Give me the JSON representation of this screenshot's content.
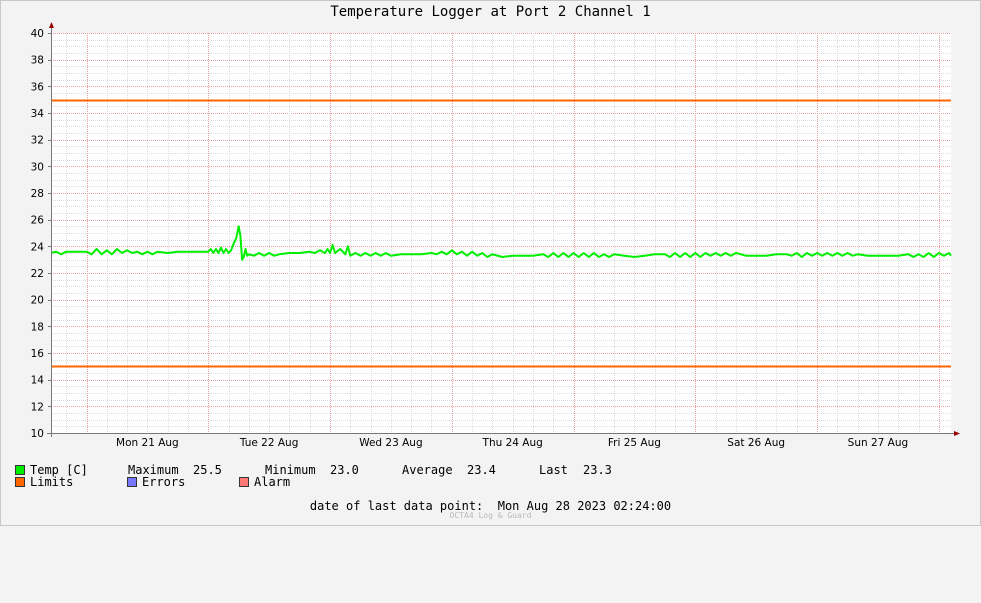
{
  "title": "Temperature Logger at Port 2 Channel 1",
  "chart_data": {
    "type": "line",
    "title": "Temperature Logger at Port 2 Channel 1",
    "xlabel": "",
    "ylabel": "",
    "ylim": [
      10,
      40
    ],
    "y_ticks": [
      10,
      12,
      14,
      16,
      18,
      20,
      22,
      24,
      26,
      28,
      30,
      32,
      34,
      36,
      38,
      40
    ],
    "x_range": [
      "2023-08-20 17:00",
      "2023-08-28 02:24"
    ],
    "x_ticks": [
      {
        "label": "Mon 21 Aug",
        "date": "2023-08-21"
      },
      {
        "label": "Tue 22 Aug",
        "date": "2023-08-22"
      },
      {
        "label": "Wed 23 Aug",
        "date": "2023-08-23"
      },
      {
        "label": "Thu 24 Aug",
        "date": "2023-08-24"
      },
      {
        "label": "Fri 25 Aug",
        "date": "2023-08-25"
      },
      {
        "label": "Sat 26 Aug",
        "date": "2023-08-26"
      },
      {
        "label": "Sun 27 Aug",
        "date": "2023-08-27"
      }
    ],
    "grid": true,
    "series": [
      {
        "name": "Temp [C]",
        "color": "#00ee00",
        "points": [
          [
            "2023-08-20 17:00",
            23.5
          ],
          [
            "2023-08-20 18:00",
            23.6
          ],
          [
            "2023-08-20 19:00",
            23.4
          ],
          [
            "2023-08-20 20:00",
            23.6
          ],
          [
            "2023-08-20 22:00",
            23.6
          ],
          [
            "2023-08-21 00:00",
            23.6
          ],
          [
            "2023-08-21 01:00",
            23.4
          ],
          [
            "2023-08-21 02:00",
            23.8
          ],
          [
            "2023-08-21 03:00",
            23.4
          ],
          [
            "2023-08-21 04:00",
            23.7
          ],
          [
            "2023-08-21 05:00",
            23.4
          ],
          [
            "2023-08-21 06:00",
            23.8
          ],
          [
            "2023-08-21 07:00",
            23.5
          ],
          [
            "2023-08-21 08:00",
            23.7
          ],
          [
            "2023-08-21 09:00",
            23.5
          ],
          [
            "2023-08-21 10:00",
            23.6
          ],
          [
            "2023-08-21 11:00",
            23.4
          ],
          [
            "2023-08-21 12:00",
            23.6
          ],
          [
            "2023-08-21 13:00",
            23.4
          ],
          [
            "2023-08-21 14:00",
            23.6
          ],
          [
            "2023-08-21 16:00",
            23.5
          ],
          [
            "2023-08-21 18:00",
            23.6
          ],
          [
            "2023-08-21 20:00",
            23.6
          ],
          [
            "2023-08-21 22:00",
            23.6
          ],
          [
            "2023-08-22 00:00",
            23.6
          ],
          [
            "2023-08-22 00:30",
            23.8
          ],
          [
            "2023-08-22 01:00",
            23.5
          ],
          [
            "2023-08-22 01:30",
            23.8
          ],
          [
            "2023-08-22 02:00",
            23.5
          ],
          [
            "2023-08-22 02:30",
            23.9
          ],
          [
            "2023-08-22 03:00",
            23.5
          ],
          [
            "2023-08-22 03:30",
            23.8
          ],
          [
            "2023-08-22 04:00",
            23.5
          ],
          [
            "2023-08-22 04:30",
            23.7
          ],
          [
            "2023-08-22 05:00",
            24.2
          ],
          [
            "2023-08-22 05:30",
            24.6
          ],
          [
            "2023-08-22 06:00",
            25.5
          ],
          [
            "2023-08-22 06:20",
            24.8
          ],
          [
            "2023-08-22 06:40",
            23.0
          ],
          [
            "2023-08-22 07:00",
            23.2
          ],
          [
            "2023-08-22 07:20",
            23.8
          ],
          [
            "2023-08-22 07:40",
            23.3
          ],
          [
            "2023-08-22 08:00",
            23.4
          ],
          [
            "2023-08-22 09:00",
            23.3
          ],
          [
            "2023-08-22 10:00",
            23.5
          ],
          [
            "2023-08-22 11:00",
            23.3
          ],
          [
            "2023-08-22 12:00",
            23.5
          ],
          [
            "2023-08-22 13:00",
            23.3
          ],
          [
            "2023-08-22 14:00",
            23.4
          ],
          [
            "2023-08-22 16:00",
            23.5
          ],
          [
            "2023-08-22 18:00",
            23.5
          ],
          [
            "2023-08-22 20:00",
            23.6
          ],
          [
            "2023-08-22 21:00",
            23.5
          ],
          [
            "2023-08-22 22:00",
            23.7
          ],
          [
            "2023-08-22 23:00",
            23.5
          ],
          [
            "2023-08-22 23:30",
            23.8
          ],
          [
            "2023-08-23 00:00",
            23.5
          ],
          [
            "2023-08-23 00:30",
            24.1
          ],
          [
            "2023-08-23 01:00",
            23.5
          ],
          [
            "2023-08-23 02:00",
            23.8
          ],
          [
            "2023-08-23 03:00",
            23.4
          ],
          [
            "2023-08-23 03:30",
            24.0
          ],
          [
            "2023-08-23 04:00",
            23.3
          ],
          [
            "2023-08-23 05:00",
            23.5
          ],
          [
            "2023-08-23 06:00",
            23.3
          ],
          [
            "2023-08-23 07:00",
            23.5
          ],
          [
            "2023-08-23 08:00",
            23.3
          ],
          [
            "2023-08-23 09:00",
            23.5
          ],
          [
            "2023-08-23 10:00",
            23.3
          ],
          [
            "2023-08-23 11:00",
            23.5
          ],
          [
            "2023-08-23 12:00",
            23.3
          ],
          [
            "2023-08-23 14:00",
            23.4
          ],
          [
            "2023-08-23 16:00",
            23.4
          ],
          [
            "2023-08-23 18:00",
            23.4
          ],
          [
            "2023-08-23 20:00",
            23.5
          ],
          [
            "2023-08-23 21:00",
            23.4
          ],
          [
            "2023-08-23 22:00",
            23.6
          ],
          [
            "2023-08-23 23:00",
            23.4
          ],
          [
            "2023-08-24 00:00",
            23.7
          ],
          [
            "2023-08-24 01:00",
            23.4
          ],
          [
            "2023-08-24 02:00",
            23.6
          ],
          [
            "2023-08-24 03:00",
            23.3
          ],
          [
            "2023-08-24 04:00",
            23.6
          ],
          [
            "2023-08-24 05:00",
            23.3
          ],
          [
            "2023-08-24 06:00",
            23.5
          ],
          [
            "2023-08-24 07:00",
            23.2
          ],
          [
            "2023-08-24 08:00",
            23.4
          ],
          [
            "2023-08-24 10:00",
            23.2
          ],
          [
            "2023-08-24 12:00",
            23.3
          ],
          [
            "2023-08-24 14:00",
            23.3
          ],
          [
            "2023-08-24 16:00",
            23.3
          ],
          [
            "2023-08-24 18:00",
            23.4
          ],
          [
            "2023-08-24 19:00",
            23.2
          ],
          [
            "2023-08-24 20:00",
            23.5
          ],
          [
            "2023-08-24 21:00",
            23.2
          ],
          [
            "2023-08-24 22:00",
            23.5
          ],
          [
            "2023-08-24 23:00",
            23.2
          ],
          [
            "2023-08-25 00:00",
            23.5
          ],
          [
            "2023-08-25 01:00",
            23.2
          ],
          [
            "2023-08-25 02:00",
            23.5
          ],
          [
            "2023-08-25 03:00",
            23.2
          ],
          [
            "2023-08-25 04:00",
            23.5
          ],
          [
            "2023-08-25 05:00",
            23.2
          ],
          [
            "2023-08-25 06:00",
            23.4
          ],
          [
            "2023-08-25 07:00",
            23.2
          ],
          [
            "2023-08-25 08:00",
            23.4
          ],
          [
            "2023-08-25 10:00",
            23.3
          ],
          [
            "2023-08-25 12:00",
            23.2
          ],
          [
            "2023-08-25 14:00",
            23.3
          ],
          [
            "2023-08-25 16:00",
            23.4
          ],
          [
            "2023-08-25 18:00",
            23.4
          ],
          [
            "2023-08-25 19:00",
            23.2
          ],
          [
            "2023-08-25 20:00",
            23.5
          ],
          [
            "2023-08-25 21:00",
            23.2
          ],
          [
            "2023-08-25 22:00",
            23.5
          ],
          [
            "2023-08-25 23:00",
            23.2
          ],
          [
            "2023-08-26 00:00",
            23.5
          ],
          [
            "2023-08-26 01:00",
            23.2
          ],
          [
            "2023-08-26 02:00",
            23.5
          ],
          [
            "2023-08-26 03:00",
            23.3
          ],
          [
            "2023-08-26 04:00",
            23.5
          ],
          [
            "2023-08-26 05:00",
            23.3
          ],
          [
            "2023-08-26 06:00",
            23.5
          ],
          [
            "2023-08-26 07:00",
            23.3
          ],
          [
            "2023-08-26 08:00",
            23.5
          ],
          [
            "2023-08-26 10:00",
            23.3
          ],
          [
            "2023-08-26 12:00",
            23.3
          ],
          [
            "2023-08-26 14:00",
            23.3
          ],
          [
            "2023-08-26 16:00",
            23.4
          ],
          [
            "2023-08-26 18:00",
            23.4
          ],
          [
            "2023-08-26 19:00",
            23.3
          ],
          [
            "2023-08-26 20:00",
            23.5
          ],
          [
            "2023-08-26 21:00",
            23.2
          ],
          [
            "2023-08-26 22:00",
            23.5
          ],
          [
            "2023-08-26 23:00",
            23.3
          ],
          [
            "2023-08-27 00:00",
            23.5
          ],
          [
            "2023-08-27 01:00",
            23.3
          ],
          [
            "2023-08-27 02:00",
            23.5
          ],
          [
            "2023-08-27 03:00",
            23.3
          ],
          [
            "2023-08-27 04:00",
            23.5
          ],
          [
            "2023-08-27 05:00",
            23.3
          ],
          [
            "2023-08-27 06:00",
            23.5
          ],
          [
            "2023-08-27 07:00",
            23.3
          ],
          [
            "2023-08-27 08:00",
            23.4
          ],
          [
            "2023-08-27 10:00",
            23.3
          ],
          [
            "2023-08-27 12:00",
            23.3
          ],
          [
            "2023-08-27 14:00",
            23.3
          ],
          [
            "2023-08-27 16:00",
            23.3
          ],
          [
            "2023-08-27 18:00",
            23.4
          ],
          [
            "2023-08-27 19:00",
            23.2
          ],
          [
            "2023-08-27 20:00",
            23.4
          ],
          [
            "2023-08-27 21:00",
            23.2
          ],
          [
            "2023-08-27 22:00",
            23.5
          ],
          [
            "2023-08-27 23:00",
            23.2
          ],
          [
            "2023-08-28 00:00",
            23.5
          ],
          [
            "2023-08-28 01:00",
            23.3
          ],
          [
            "2023-08-28 02:00",
            23.5
          ],
          [
            "2023-08-28 02:24",
            23.3
          ]
        ]
      },
      {
        "name": "Limits",
        "color": "#ff6600",
        "values": [
          35.0,
          15.0
        ]
      }
    ]
  },
  "legend": {
    "temp": {
      "label": "Temp [C]",
      "color": "#00ee00"
    },
    "limits": {
      "label": "Limits",
      "color": "#ff6600"
    },
    "errors": {
      "label": "Errors",
      "color": "#7777ff"
    },
    "alarm": {
      "label": "Alarm",
      "color": "#ff7777"
    },
    "maximum_label": "Maximum",
    "maximum_value": "25.5",
    "minimum_label": "Minimum",
    "minimum_value": "23.0",
    "average_label": "Average",
    "average_value": "23.4",
    "last_label": "Last",
    "last_value": "23.3"
  },
  "footer": {
    "last_point_label": "date of last data point:",
    "last_point_value": "Mon Aug 28 2023 02:24:00",
    "watermark": "OCTA4 Log & Guard"
  }
}
